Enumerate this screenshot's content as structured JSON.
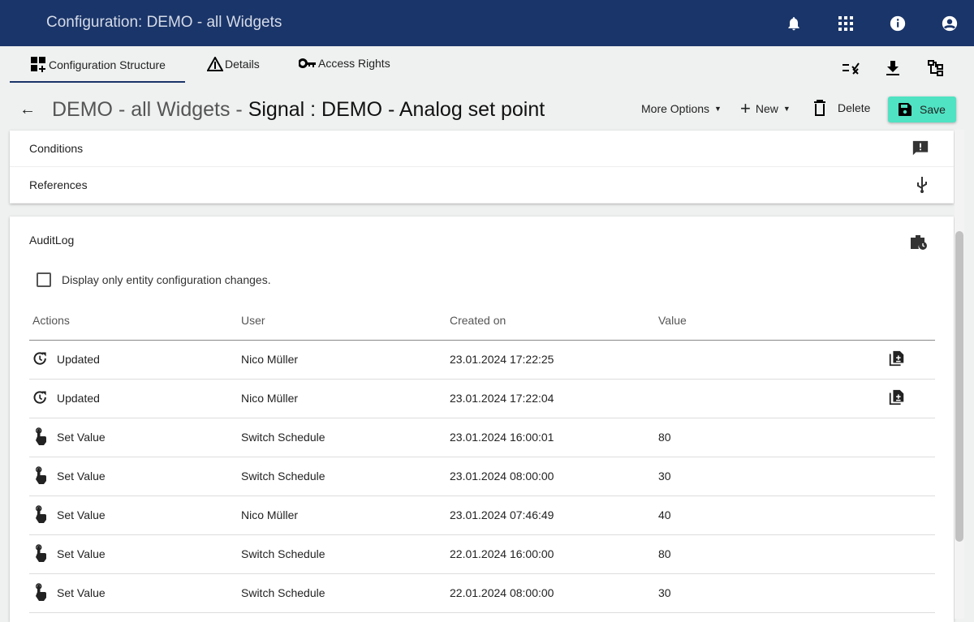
{
  "header": {
    "title": "Configuration: DEMO - all Widgets",
    "icons": [
      "bell-icon",
      "apps-grid-icon",
      "info-icon",
      "account-icon"
    ]
  },
  "tabs": [
    {
      "label": "Configuration Structure",
      "icon": "structure-icon",
      "active": true
    },
    {
      "label": "Details",
      "icon": "warning-icon"
    },
    {
      "label": "Access Rights",
      "icon": "key-icon"
    }
  ],
  "page": {
    "title_prefix": "DEMO - all Widgets - ",
    "title_main": "Signal : DEMO - Analog set point"
  },
  "actions": {
    "more": "More Options",
    "new": "New",
    "delete": "Delete",
    "save": "Save"
  },
  "sections": {
    "conditions": "Conditions",
    "references": "References",
    "auditlog": "AuditLog"
  },
  "audit": {
    "checkbox_label": "Display only entity configuration changes.",
    "checked": false,
    "columns": [
      "Actions",
      "User",
      "Created on",
      "Value"
    ],
    "rows": [
      {
        "action": "Updated",
        "icon": "history-icon",
        "user": "Nico Müller",
        "created": "23.01.2024 17:22:25",
        "value": "",
        "detail": true
      },
      {
        "action": "Updated",
        "icon": "history-icon",
        "user": "Nico Müller",
        "created": "23.01.2024 17:22:04",
        "value": "",
        "detail": true
      },
      {
        "action": "Set Value",
        "icon": "touch-icon",
        "user": "Switch Schedule",
        "created": "23.01.2024 16:00:01",
        "value": "80"
      },
      {
        "action": "Set Value",
        "icon": "touch-icon",
        "user": "Switch Schedule",
        "created": "23.01.2024 08:00:00",
        "value": "30"
      },
      {
        "action": "Set Value",
        "icon": "touch-icon",
        "user": "Nico Müller",
        "created": "23.01.2024 07:46:49",
        "value": "40"
      },
      {
        "action": "Set Value",
        "icon": "touch-icon",
        "user": "Switch Schedule",
        "created": "22.01.2024 16:00:00",
        "value": "80"
      },
      {
        "action": "Set Value",
        "icon": "touch-icon",
        "user": "Switch Schedule",
        "created": "22.01.2024 08:00:00",
        "value": "30"
      }
    ]
  },
  "colors": {
    "header": "#1a3569",
    "save": "#4fe3c3"
  }
}
